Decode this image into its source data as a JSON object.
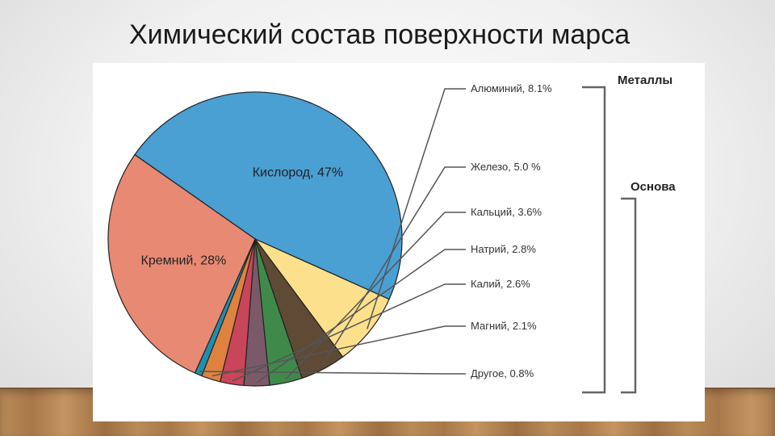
{
  "slide": {
    "title": "Химический состав поверхности марса"
  },
  "chart_data": {
    "type": "pie",
    "title": "Химический состав поверхности марса",
    "slices": [
      {
        "label": "Кислород, 47%",
        "value": 47,
        "color": "#4a9fd3",
        "label_position": "inside"
      },
      {
        "label": "Алюминий, 8.1%",
        "value": 8.1,
        "color": "#fde08b",
        "label_position": "outside"
      },
      {
        "label": "Железо, 5.0 %",
        "value": 5.0,
        "color": "#5e4a35",
        "label_position": "outside"
      },
      {
        "label": "Кальций, 3.6%",
        "value": 3.6,
        "color": "#3f8a4a",
        "label_position": "outside"
      },
      {
        "label": "Натрий, 2.8%",
        "value": 2.8,
        "color": "#7a5a68",
        "label_position": "outside"
      },
      {
        "label": "Калий, 2.6%",
        "value": 2.6,
        "color": "#c9455a",
        "label_position": "outside"
      },
      {
        "label": "Магний, 2.1%",
        "value": 2.1,
        "color": "#e0823f",
        "label_position": "outside"
      },
      {
        "label": "Другое, 0.8%",
        "value": 0.8,
        "color": "#1f8fae",
        "label_position": "outside"
      },
      {
        "label": "Кремний, 28%",
        "value": 28,
        "color": "#e88a73",
        "label_position": "inside"
      }
    ],
    "groups": [
      {
        "label": "Металлы"
      },
      {
        "label": "Основа"
      }
    ]
  }
}
